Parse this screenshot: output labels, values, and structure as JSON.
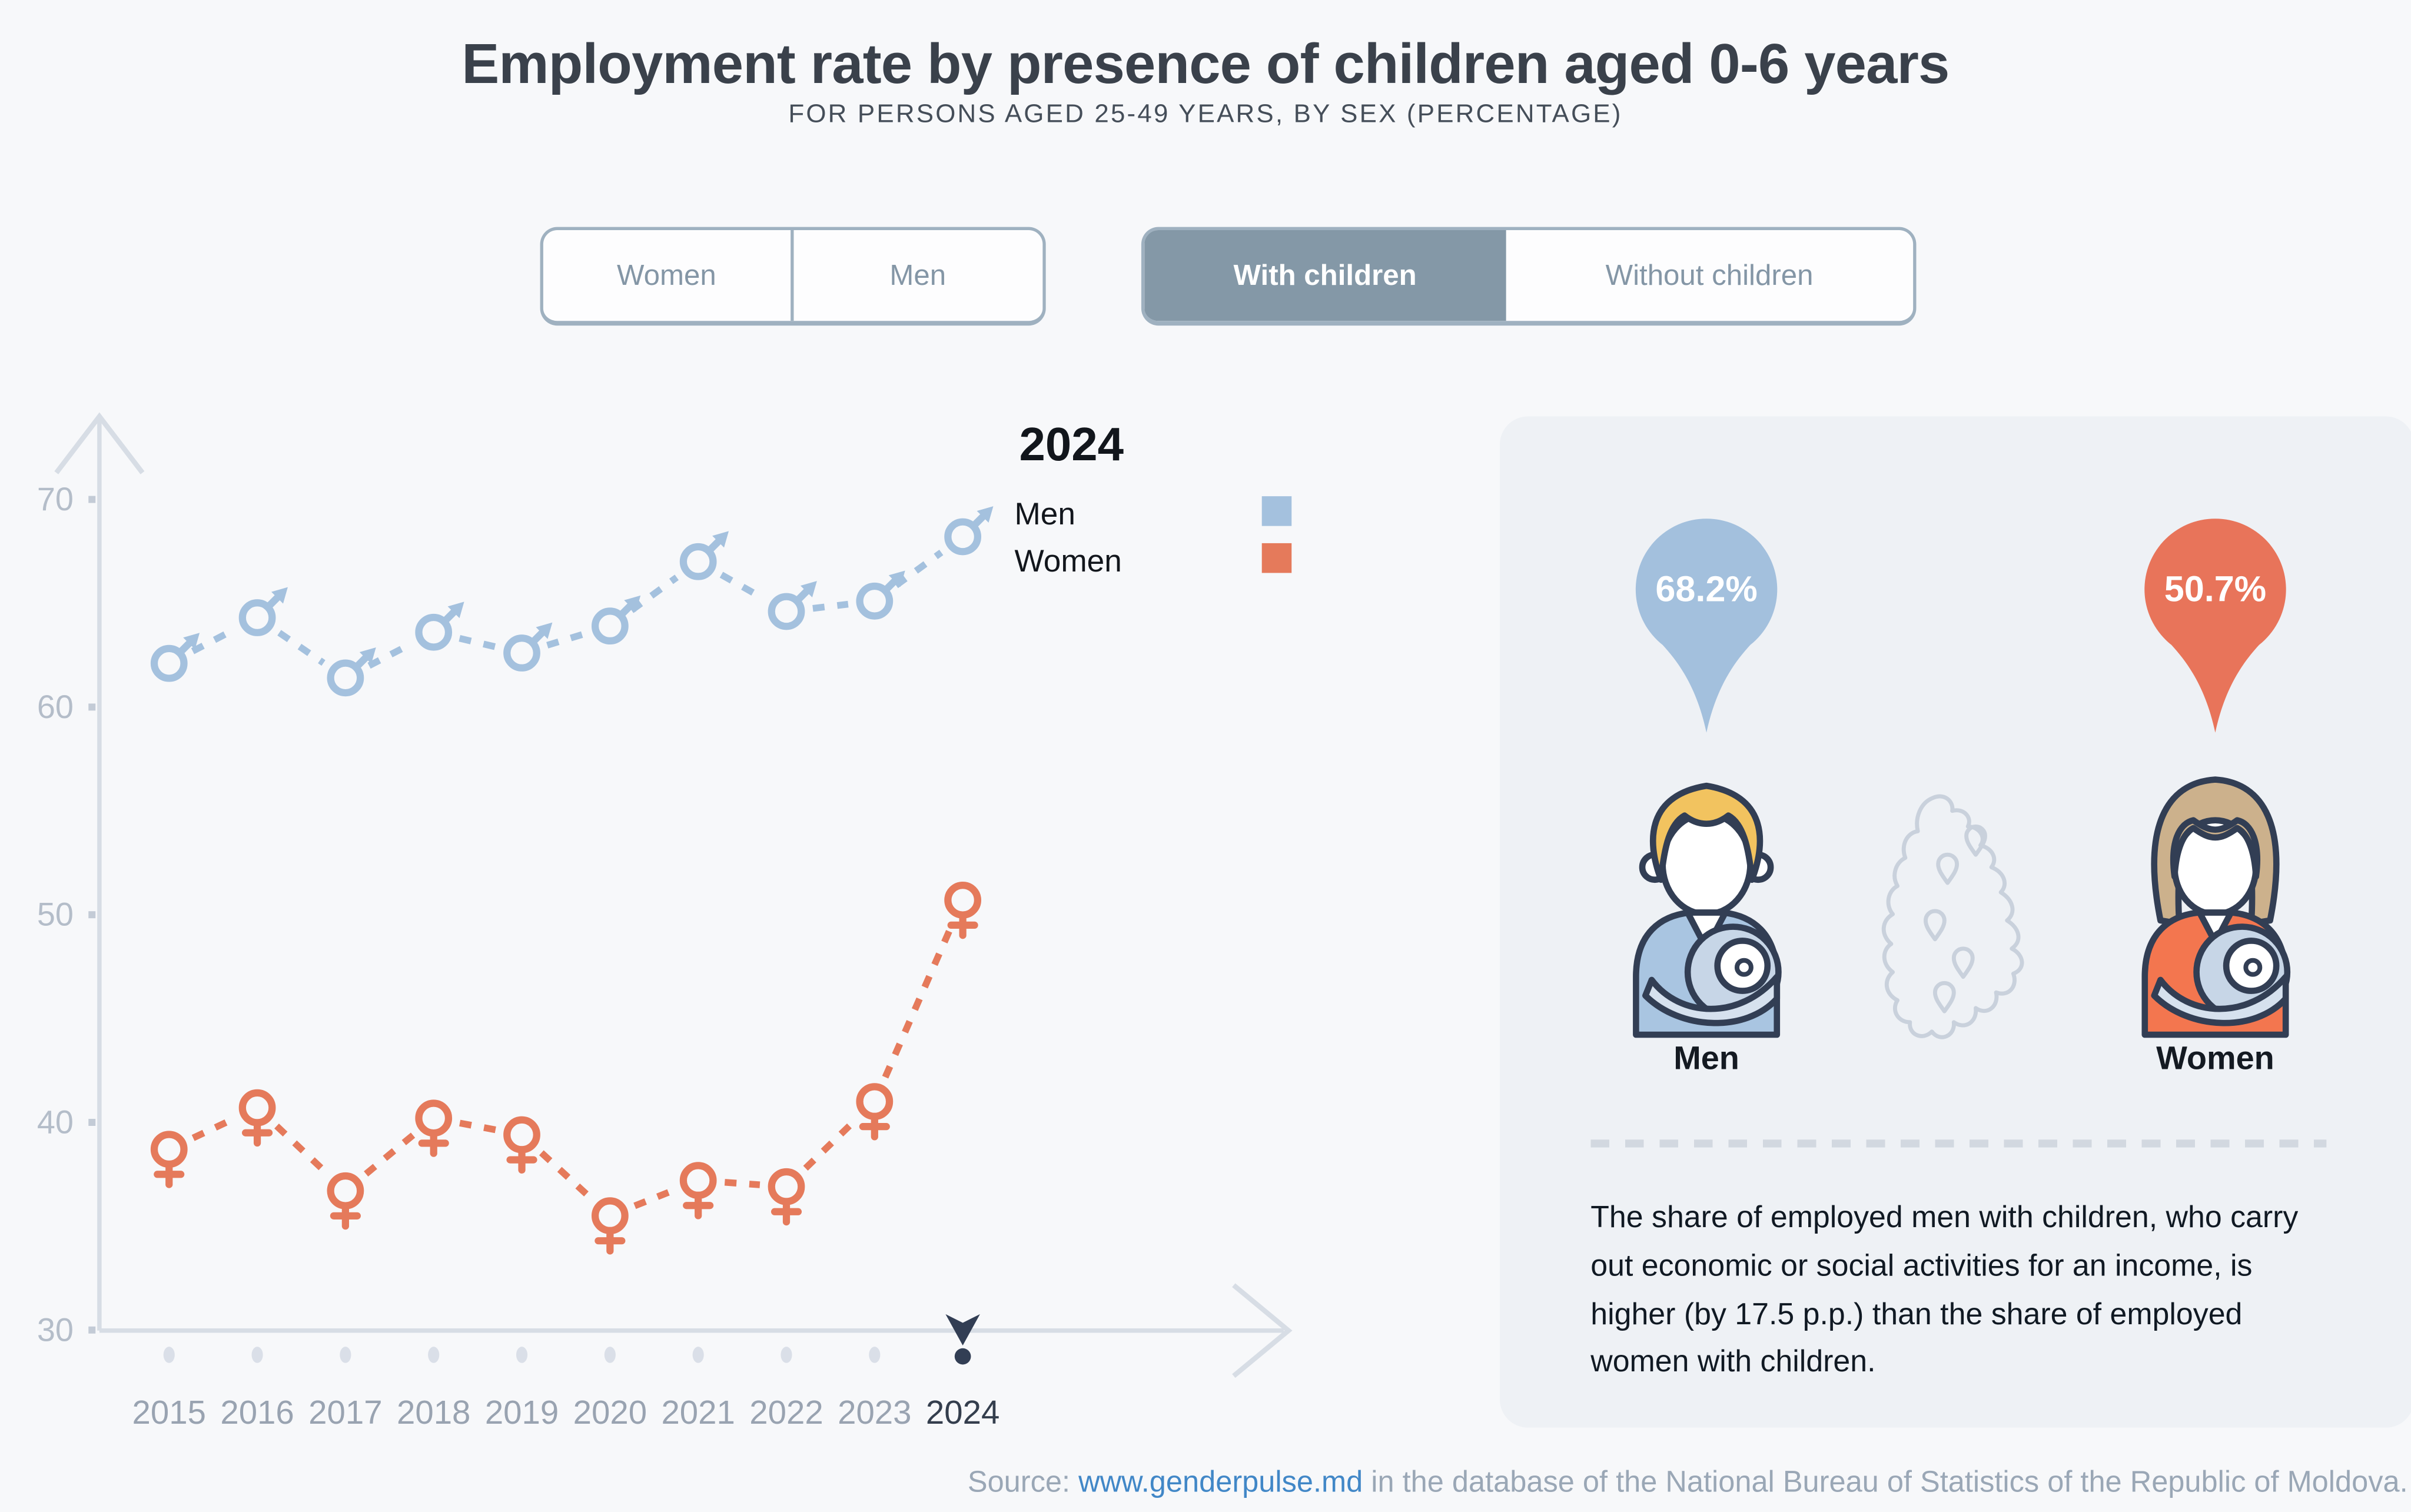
{
  "header": {
    "title": "Employment rate by presence of children aged 0-6 years",
    "subtitle": "FOR PERSONS AGED 25-49 YEARS, BY SEX (PERCENTAGE)"
  },
  "toggles": {
    "sex": {
      "options": [
        {
          "label": "Women",
          "selected": false
        },
        {
          "label": "Men",
          "selected": false
        }
      ]
    },
    "children": {
      "options": [
        {
          "label": "With children",
          "selected": true
        },
        {
          "label": "Without children",
          "selected": false
        }
      ]
    }
  },
  "chart_data": {
    "type": "line",
    "title": "Employment rate by presence of children aged 0-6 years",
    "x": [
      2015,
      2016,
      2017,
      2018,
      2019,
      2020,
      2021,
      2022,
      2023,
      2024
    ],
    "series": [
      {
        "name": "Men",
        "marker": "male",
        "color": "#a4c1de",
        "values": [
          62.1,
          64.3,
          61.4,
          63.6,
          62.6,
          63.9,
          67.0,
          64.6,
          65.1,
          68.2
        ]
      },
      {
        "name": "Women",
        "marker": "female",
        "color": "#e57a5b",
        "values": [
          38.7,
          40.7,
          36.7,
          40.2,
          39.4,
          35.5,
          37.2,
          36.9,
          41.0,
          50.7
        ]
      }
    ],
    "ylim": [
      30,
      70
    ],
    "yticks": [
      30,
      40,
      50,
      60,
      70
    ],
    "grid": false,
    "line_style": "dashed",
    "selected_year": 2024,
    "legend": {
      "title": "2024",
      "position": "top-right-of-plot",
      "entries": [
        {
          "label": "Men",
          "color": "#a4c1de"
        },
        {
          "label": "Women",
          "color": "#e57a5b"
        }
      ]
    }
  },
  "panel": {
    "men_value": "68.2%",
    "women_value": "50.7%",
    "men_label": "Men",
    "women_label": "Women",
    "description": "The share of employed men with children, who carry out economic or social activities for an income, is higher (by 17.5 p.p.) than the share of employed women with children."
  },
  "source": {
    "prefix": "Source: ",
    "link": "www.genderpulse.md",
    "suffix": " in the database of the National Bureau of Statistics of the Republic of Moldova."
  },
  "colors": {
    "bg": "#f7f8fa",
    "panel": "#eef1f5",
    "navy": "#323e54",
    "men": "#a4c1de",
    "women": "#e57a5b",
    "axis": "#d7dde5",
    "tick_square": "#c3cbd6",
    "tick_text": "#b4bdc9",
    "year_text": "#99a3b1",
    "year_selected": "#343e4d",
    "toggle_border": "#9fb1c0",
    "toggle_text": "#8496a6",
    "toggle_selected_bg": "#8498a7",
    "toggle_selected_text": "#ffffff",
    "title": "#3a414b",
    "subtitle": "#454e59",
    "text": "#101923",
    "label": "#141a22",
    "source": "#9aa7b6",
    "link": "#4187c7",
    "map": "#c9d1dc",
    "divider": "#d2d8e0",
    "man_hair": "#f2c35f",
    "woman_hair": "#ccb18c",
    "suit": "#a9c5e1",
    "suit_light": "#d6e1ee",
    "baby_wrap": "#c7d6e7",
    "woman_top": "#f3764f",
    "pin_men": "#a3c0dd",
    "pin_women": "#e8745a"
  }
}
